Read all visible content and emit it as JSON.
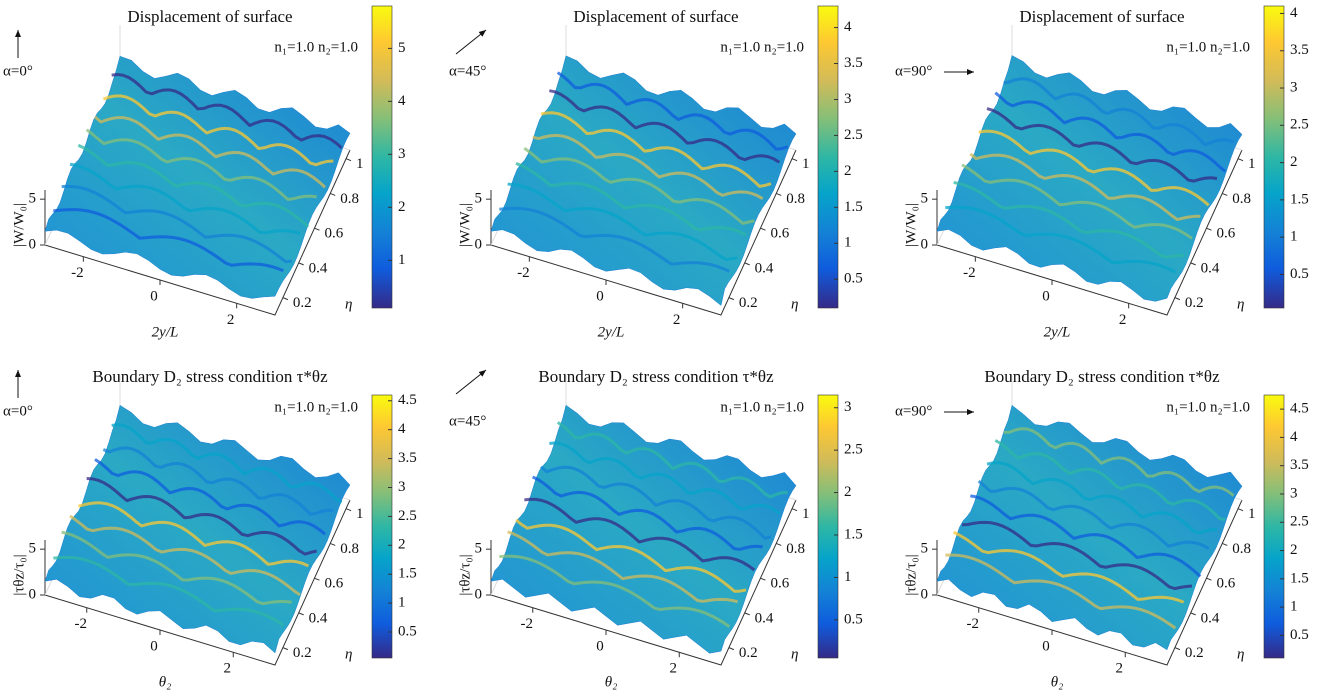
{
  "chart_data": [
    {
      "type": "surface",
      "title": "Displacement of surface",
      "direction": "α=0°",
      "params": "n₁=1.0  n₂=1.0",
      "zlabel": "|W/W₀|",
      "xlabel": "2y/L",
      "ylabel": "η",
      "xlim": [
        -3,
        3
      ],
      "xticks": [
        -2,
        0,
        2
      ],
      "ylim": [
        0.1,
        1.05
      ],
      "yticks": [
        0.2,
        0.4,
        0.6,
        0.8,
        1
      ],
      "zlim": [
        0,
        6
      ],
      "zticks": [
        0,
        5
      ],
      "clim": [
        0.1,
        5.8
      ],
      "cticks": [
        1,
        2,
        3,
        4,
        5
      ]
    },
    {
      "type": "surface",
      "title": "Displacement of surface",
      "direction": "α=45°",
      "params": "n₁=1.0  n₂=1.0",
      "zlabel": "|W/W₀|",
      "xlabel": "2y/L",
      "ylabel": "η",
      "xlim": [
        -3,
        3
      ],
      "xticks": [
        -2,
        0,
        2
      ],
      "ylim": [
        0.1,
        1.05
      ],
      "yticks": [
        0.2,
        0.4,
        0.6,
        0.8,
        1
      ],
      "zlim": [
        0,
        6
      ],
      "zticks": [
        0,
        5
      ],
      "clim": [
        0.1,
        4.3
      ],
      "cticks": [
        0.5,
        1,
        1.5,
        2,
        2.5,
        3,
        3.5,
        4
      ]
    },
    {
      "type": "surface",
      "title": "Displacement of surface",
      "direction": "α=90°",
      "params": "n₁=1.0  n₂=1.0",
      "zlabel": "|W/W₀|",
      "xlabel": "2y/L",
      "ylabel": "η",
      "xlim": [
        -3,
        3
      ],
      "xticks": [
        -2,
        0,
        2
      ],
      "ylim": [
        0.1,
        1.05
      ],
      "yticks": [
        0.2,
        0.4,
        0.6,
        0.8,
        1
      ],
      "zlim": [
        0,
        6
      ],
      "zticks": [
        0,
        5
      ],
      "clim": [
        0.05,
        4.1
      ],
      "cticks": [
        0.5,
        1,
        1.5,
        2,
        2.5,
        3,
        3.5,
        4
      ]
    },
    {
      "type": "surface",
      "title": "Boundary D₂ stress condition τ*θz",
      "direction": "α=0°",
      "params": "n₁=1.0  n₂=1.0",
      "zlabel": "|τθz/τ₀|",
      "xlabel": "θ₂",
      "ylabel": "η",
      "xlim": [
        -3.14,
        3.14
      ],
      "xticks": [
        -2,
        0,
        2
      ],
      "ylim": [
        0.1,
        1.05
      ],
      "yticks": [
        0.2,
        0.4,
        0.6,
        0.8,
        1
      ],
      "zlim": [
        0,
        6
      ],
      "zticks": [
        0,
        5
      ],
      "clim": [
        0.05,
        4.6
      ],
      "cticks": [
        0.5,
        1,
        1.5,
        2,
        2.5,
        3,
        3.5,
        4,
        4.5
      ]
    },
    {
      "type": "surface",
      "title": "Boundary D₂ stress condition τ*θz",
      "direction": "α=45°",
      "params": "n₁=1.0  n₂=1.0",
      "zlabel": "|τθz/τ₀|",
      "xlabel": "θ₂",
      "ylabel": "η",
      "xlim": [
        -3.14,
        3.14
      ],
      "xticks": [
        -2,
        0,
        2
      ],
      "ylim": [
        0.1,
        1.05
      ],
      "yticks": [
        0.2,
        0.4,
        0.6,
        0.8,
        1
      ],
      "zlim": [
        0,
        6
      ],
      "zticks": [
        0,
        5
      ],
      "clim": [
        0.05,
        3.15
      ],
      "cticks": [
        0.5,
        1,
        1.5,
        2,
        2.5,
        3
      ]
    },
    {
      "type": "surface",
      "title": "Boundary D₂ stress condition τ*θz",
      "direction": "α=90°",
      "params": "n₁=1.0  n₂=1.0",
      "zlabel": "|τθz/τ₀|",
      "xlabel": "θ₂",
      "ylabel": "η",
      "xlim": [
        -3.14,
        3.14
      ],
      "xticks": [
        -2,
        0,
        2
      ],
      "ylim": [
        0.1,
        1.05
      ],
      "yticks": [
        0.2,
        0.4,
        0.6,
        0.8,
        1
      ],
      "zlim": [
        0,
        6
      ],
      "zticks": [
        0,
        5
      ],
      "clim": [
        0.1,
        4.75
      ],
      "cticks": [
        0.5,
        1,
        1.5,
        2,
        2.5,
        3,
        3.5,
        4,
        4.5
      ]
    }
  ]
}
